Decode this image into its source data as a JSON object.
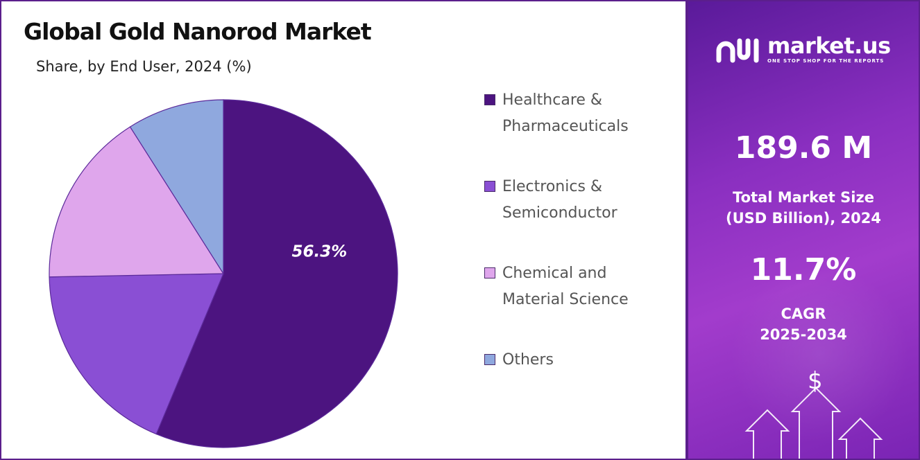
{
  "chart_data": {
    "type": "pie",
    "title": "Global Gold Nanorod Market",
    "subtitle": "Share, by  End User, 2024 (%)",
    "slices": [
      {
        "label": "Healthcare & Pharmaceuticals",
        "value": 56.3,
        "color": "#4c1480",
        "data_label": "56.3%"
      },
      {
        "label": "Electronics & Semiconductor",
        "value": 18.4,
        "color": "#8a4fd4",
        "data_label": ""
      },
      {
        "label": "Chemical and Material Science",
        "value": 16.3,
        "color": "#dfa6ec",
        "data_label": ""
      },
      {
        "label": "Others",
        "value": 9.0,
        "color": "#8fa8de",
        "data_label": ""
      }
    ],
    "legend_position": "right"
  },
  "legend": [
    {
      "line1": "Healthcare &",
      "line2": "Pharmaceuticals",
      "color": "#4c1480"
    },
    {
      "line1": "Electronics &",
      "line2": "Semiconductor",
      "color": "#8a4fd4"
    },
    {
      "line1": "Chemical and",
      "line2": "Material Science",
      "color": "#dfa6ec"
    },
    {
      "line1": "Others",
      "line2": "",
      "color": "#8fa8de"
    }
  ],
  "sidebar": {
    "brand_name": "market.us",
    "brand_tagline": "ONE STOP SHOP FOR THE REPORTS",
    "market_size_value": "189.6 M",
    "market_size_label_1": "Total Market Size",
    "market_size_label_2": "(USD Billion), 2024",
    "cagr_value": "11.7%",
    "cagr_label_1": "CAGR",
    "cagr_label_2": "2025-2034",
    "dollar_symbol": "$"
  }
}
